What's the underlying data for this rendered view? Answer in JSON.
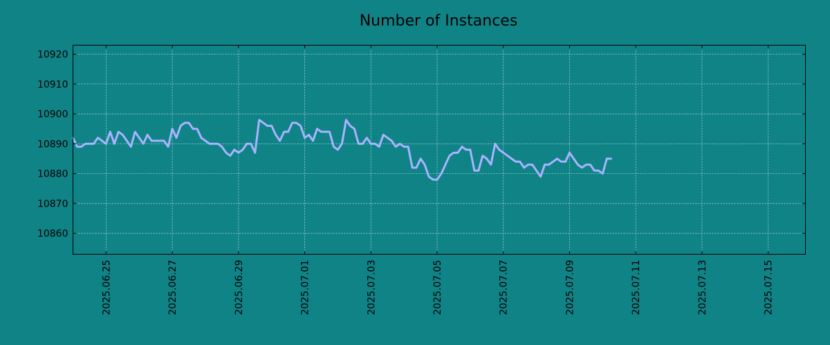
{
  "chart_data": {
    "type": "line",
    "title": "Number of Instances",
    "xlabel": "",
    "ylabel": "",
    "x_start": "2025.06.24",
    "x_step_hours": 3,
    "xlim": [
      "2025.06.24 00:00",
      "2025.07.16 03:00"
    ],
    "ylim": [
      10853,
      10923
    ],
    "y_ticks": [
      10860,
      10870,
      10880,
      10890,
      10900,
      10910,
      10920
    ],
    "x_ticks": [
      "2025.06.25",
      "2025.06.27",
      "2025.06.29",
      "2025.07.01",
      "2025.07.03",
      "2025.07.05",
      "2025.07.07",
      "2025.07.09",
      "2025.07.11",
      "2025.07.13",
      "2025.07.15"
    ],
    "grid": true,
    "series": [
      {
        "name": "",
        "color": "#a8b4ff",
        "values": [
          10892,
          10889,
          10889,
          10890,
          10890,
          10890,
          10892,
          10891,
          10890,
          10894,
          10890,
          10894,
          10893,
          10891,
          10889,
          10894,
          10892,
          10890,
          10893,
          10891,
          10891,
          10891,
          10891,
          10889,
          10895,
          10892,
          10896,
          10897,
          10897,
          10895,
          10895,
          10892,
          10891,
          10890,
          10890,
          10890,
          10889,
          10887,
          10886,
          10888,
          10887,
          10888,
          10890,
          10890,
          10887,
          10898,
          10897,
          10896,
          10896,
          10893,
          10891,
          10894,
          10894,
          10897,
          10897,
          10896,
          10892,
          10893,
          10891,
          10895,
          10894,
          10894,
          10894,
          10889,
          10888,
          10890,
          10898,
          10896,
          10895,
          10890,
          10890,
          10892,
          10890,
          10890,
          10889,
          10893,
          10892,
          10891,
          10889,
          10890,
          10889,
          10889,
          10882,
          10882,
          10885,
          10883,
          10879,
          10878,
          10878,
          10880,
          10883,
          10886,
          10887,
          10887,
          10889,
          10888,
          10888,
          10881,
          10881,
          10886,
          10885,
          10883,
          10890,
          10888,
          10887,
          10886,
          10885,
          10884,
          10884,
          10882,
          10883,
          10883,
          10881,
          10879,
          10883,
          10883,
          10884,
          10885,
          10884,
          10884,
          10887,
          10885,
          10883,
          10882,
          10883,
          10883,
          10881,
          10881,
          10880,
          10885,
          10885
        ]
      }
    ]
  }
}
